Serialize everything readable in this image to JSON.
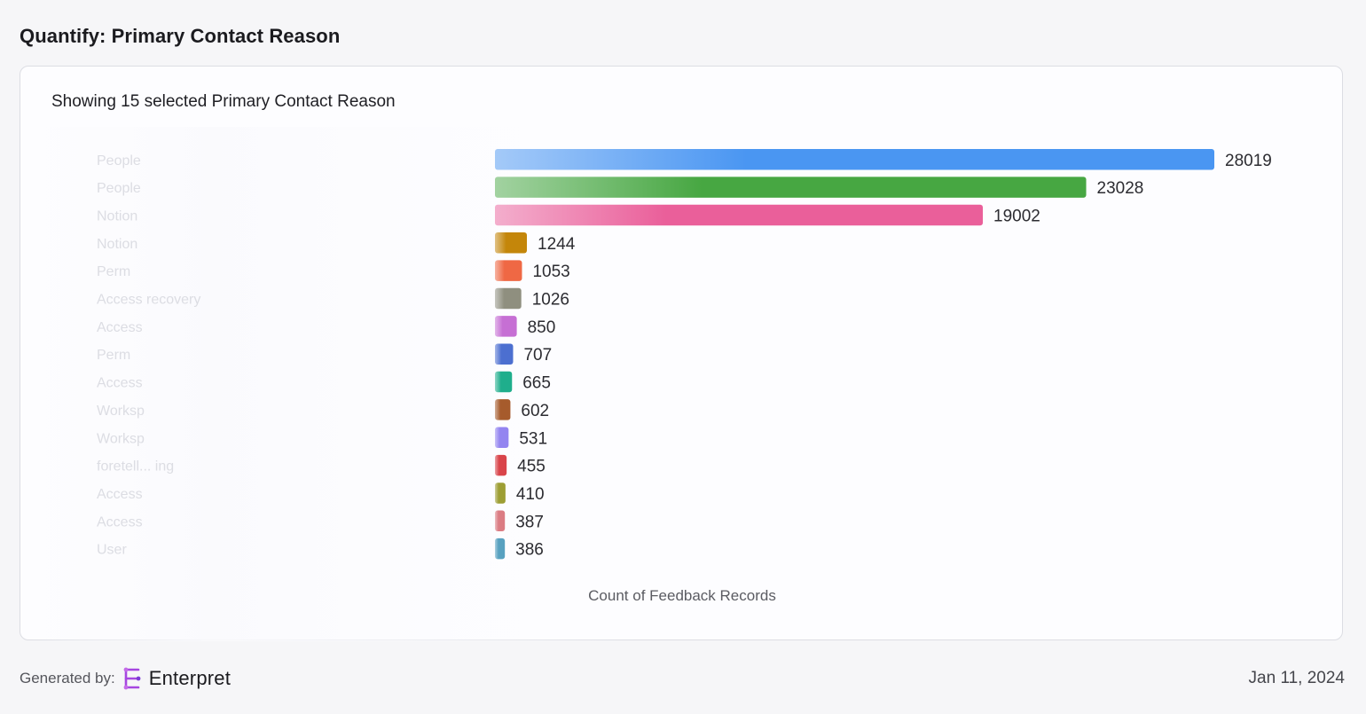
{
  "page": {
    "title": "Quantify: Primary Contact Reason"
  },
  "card": {
    "subtitle": "Showing 15 selected Primary Contact Reason"
  },
  "chart_data": {
    "type": "bar",
    "orientation": "horizontal",
    "xlabel": "Count of Feedback Records",
    "xlim": [
      0,
      28019
    ],
    "categories": [
      "People",
      "People",
      "Notion",
      "Notion",
      "Perm",
      "Access recovery",
      "Access",
      "Perm",
      "Access",
      "Worksp",
      "Worksp",
      "foretell... ing",
      "Access",
      "Access",
      "User"
    ],
    "values": [
      28019,
      23028,
      19002,
      1244,
      1053,
      1026,
      850,
      707,
      665,
      602,
      531,
      455,
      410,
      387,
      386
    ],
    "value_labels": [
      "28019",
      "23028",
      "19002",
      "1244",
      "1053",
      "1026",
      "850",
      "707",
      "665",
      "602",
      "531",
      "455",
      "410",
      "387",
      "386"
    ],
    "colors": [
      "#4a96f2",
      "#47a742",
      "#ea5f9a",
      "#c4860a",
      "#ef6844",
      "#8f8f7f",
      "#c66fd4",
      "#4c6fd0",
      "#1fae8c",
      "#a65b2c",
      "#9384f0",
      "#d9444a",
      "#9d9e34",
      "#db7c83",
      "#58a1c0"
    ]
  },
  "footer": {
    "generated_by": "Generated by:",
    "brand": "Enterpret",
    "date": "Jan 11, 2024"
  }
}
